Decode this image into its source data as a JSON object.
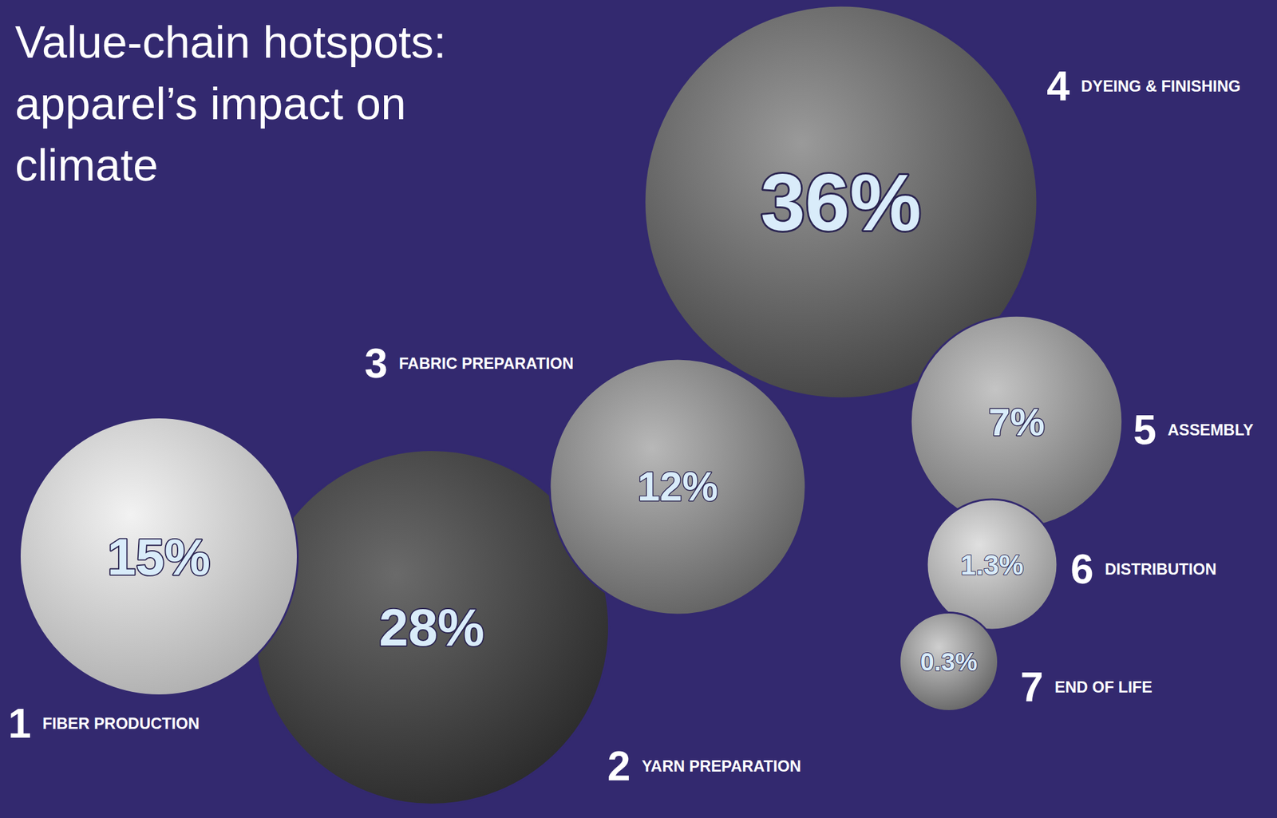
{
  "chart_data": {
    "type": "bubble",
    "title": "Value-chain hotspots: apparel’s impact on climate",
    "categories": [
      "FIBER PRODUCTION",
      "YARN PREPARATION",
      "FABRIC PREPARATION",
      "DYEING & FINISHING",
      "ASSEMBLY",
      "DISTRIBUTION",
      "END OF LIFE"
    ],
    "step_numbers": [
      1,
      2,
      3,
      4,
      5,
      6,
      7
    ],
    "values": [
      15,
      28,
      12,
      36,
      7,
      1.3,
      0.3
    ],
    "value_labels": [
      "15%",
      "28%",
      "12%",
      "36%",
      "7%",
      "1.3%",
      "0.3%"
    ],
    "data_labels": true
  }
}
